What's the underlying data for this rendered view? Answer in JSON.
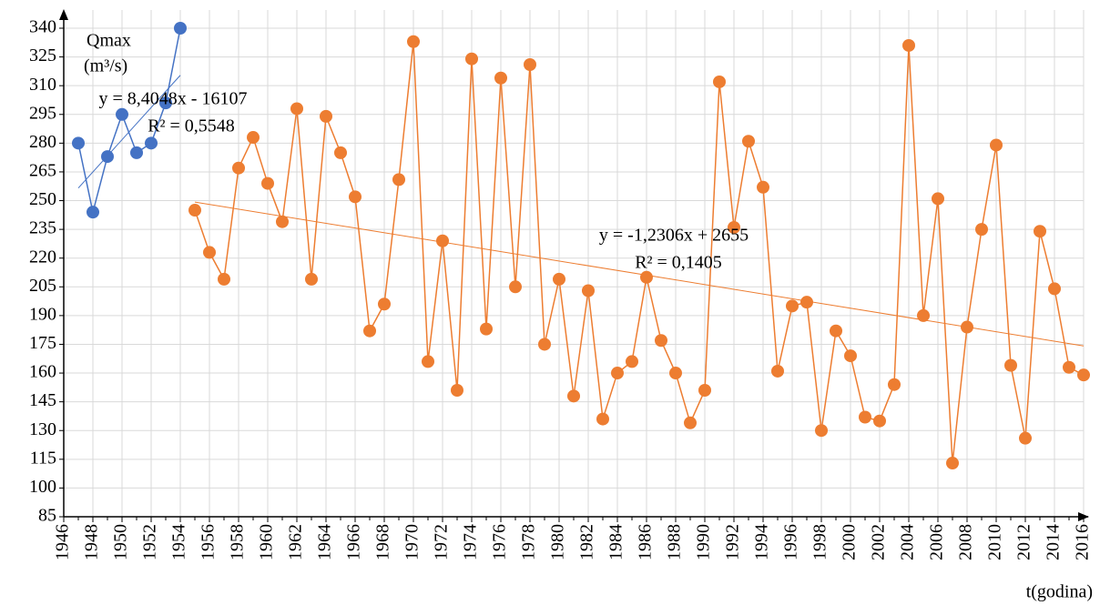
{
  "chart_data": {
    "type": "line",
    "y_label": [
      "Qmax",
      "(m³/s)"
    ],
    "x_label": "t(godina)",
    "xlim": [
      1946,
      2016
    ],
    "xticks": [
      1946,
      1948,
      1950,
      1952,
      1954,
      1956,
      1958,
      1960,
      1962,
      1964,
      1966,
      1968,
      1970,
      1972,
      1974,
      1976,
      1978,
      1980,
      1982,
      1984,
      1986,
      1988,
      1990,
      1992,
      1994,
      1996,
      1998,
      2000,
      2002,
      2004,
      2006,
      2008,
      2010,
      2012,
      2014,
      2016
    ],
    "ylim": [
      85,
      340
    ],
    "yticks": [
      85,
      100,
      115,
      130,
      145,
      160,
      175,
      190,
      205,
      220,
      235,
      250,
      265,
      280,
      295,
      310,
      325,
      340
    ],
    "grid": true,
    "series": [
      {
        "color": "#4472c4",
        "x": [
          1947,
          1948,
          1949,
          1950,
          1951,
          1952,
          1953,
          1954
        ],
        "values": [
          280,
          244,
          273,
          295,
          275,
          280,
          301,
          340
        ],
        "trendline": {
          "equation": "y = 8,4048x - 16107",
          "r2": "R² = 0,5548"
        }
      },
      {
        "color": "#ed7d31",
        "x": [
          1955,
          1956,
          1957,
          1958,
          1959,
          1960,
          1961,
          1962,
          1963,
          1964,
          1965,
          1966,
          1967,
          1968,
          1969,
          1970,
          1971,
          1972,
          1973,
          1974,
          1975,
          1976,
          1977,
          1978,
          1979,
          1980,
          1981,
          1982,
          1983,
          1984,
          1985,
          1986,
          1987,
          1988,
          1989,
          1990,
          1991,
          1992,
          1993,
          1994,
          1995,
          1996,
          1997,
          1998,
          1999,
          2000,
          2001,
          2002,
          2003,
          2004,
          2005,
          2006,
          2007,
          2008,
          2009,
          2010,
          2011,
          2012,
          2013,
          2014,
          2015,
          2016
        ],
        "values": [
          245,
          223,
          209,
          267,
          283,
          259,
          239,
          298,
          209,
          294,
          275,
          252,
          182,
          196,
          261,
          333,
          166,
          229,
          151,
          324,
          183,
          314,
          205,
          321,
          175,
          209,
          148,
          203,
          136,
          160,
          166,
          210,
          177,
          160,
          134,
          151,
          312,
          236,
          281,
          257,
          161,
          195,
          197,
          130,
          182,
          169,
          137,
          135,
          154,
          331,
          190,
          251,
          113,
          184,
          235,
          279,
          164,
          126,
          234,
          204,
          163,
          159
        ],
        "trendline": {
          "equation": "y = -1,2306x + 2655",
          "r2": "R² = 0,1405"
        }
      }
    ]
  }
}
